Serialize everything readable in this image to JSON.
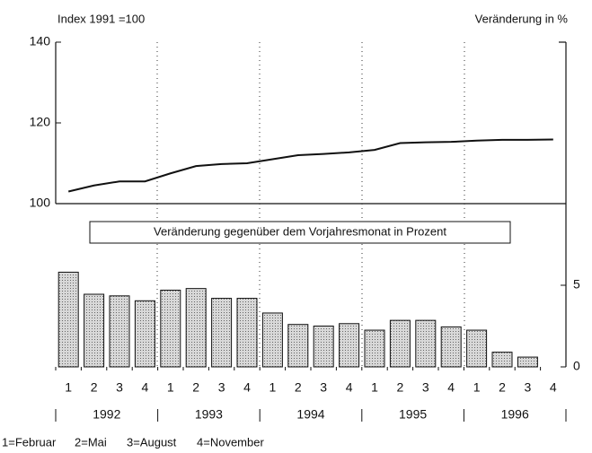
{
  "chart_data": [
    {
      "type": "line",
      "title": "Index 1991 =100",
      "color": "#111",
      "values": [
        103,
        104.5,
        105.5,
        105.5,
        107.5,
        109.3,
        109.8,
        110,
        111,
        112,
        112.3,
        112.7,
        113.3,
        115,
        115.2,
        115.3,
        115.6,
        115.8,
        115.8,
        115.9
      ],
      "ylim": [
        100,
        140
      ],
      "yticks": [
        100,
        120,
        140
      ]
    },
    {
      "type": "bar",
      "title": "Veränderung in %",
      "annotation": "Veränderung gegenüber dem Vorjahresmonat in Prozent",
      "color": "#c8c8c8",
      "categories": [
        "1",
        "2",
        "3",
        "4",
        "1",
        "2",
        "3",
        "4",
        "1",
        "2",
        "3",
        "4",
        "1",
        "2",
        "3",
        "4",
        "1",
        "2",
        "3",
        "4"
      ],
      "values": [
        5.8,
        4.45,
        4.35,
        4.05,
        4.7,
        4.8,
        4.2,
        4.2,
        3.3,
        2.6,
        2.5,
        2.65,
        2.25,
        2.85,
        2.85,
        2.45,
        2.25,
        0.9,
        0.6,
        null
      ],
      "year_groups": [
        "1992",
        "1993",
        "1994",
        "1995",
        "1996"
      ],
      "ylim": [
        0,
        10
      ],
      "yticks": [
        0,
        5
      ],
      "legend": [
        "1=Februar",
        "2=Mai",
        "3=August",
        "4=November"
      ]
    }
  ]
}
